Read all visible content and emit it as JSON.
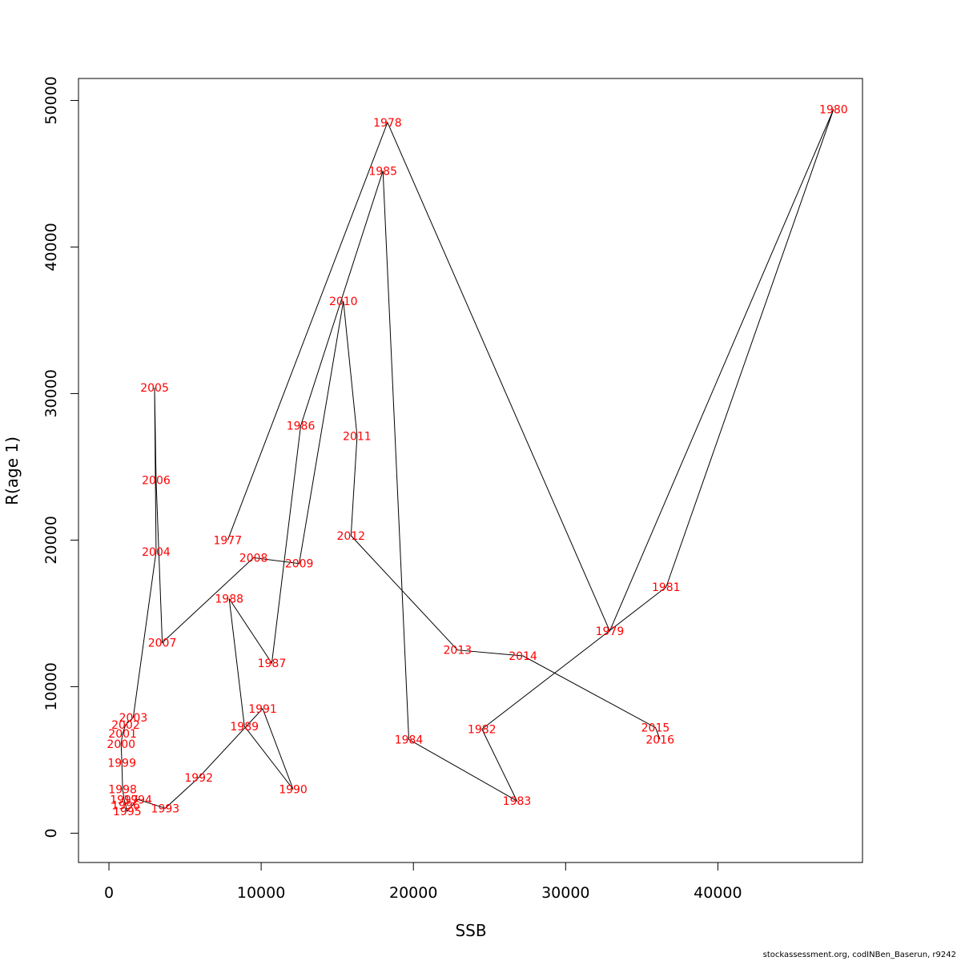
{
  "chart_data": {
    "type": "line",
    "xlabel": "SSB",
    "ylabel": "R(age 1)",
    "xlim": [
      -2000,
      49500
    ],
    "ylim": [
      -2000,
      51500
    ],
    "x_ticks": [
      0,
      10000,
      20000,
      30000,
      40000
    ],
    "x_tick_labels": [
      "0",
      "10000",
      "20000",
      "30000",
      "40000"
    ],
    "y_ticks": [
      0,
      10000,
      20000,
      30000,
      40000,
      50000
    ],
    "y_tick_labels": [
      "0",
      "10000",
      "20000",
      "30000",
      "40000",
      "50000"
    ],
    "grid": false,
    "line_color": "#000000",
    "label_color": "#ff0000",
    "points": [
      {
        "year": "1977",
        "ssb": 7800,
        "r": 20000
      },
      {
        "year": "1978",
        "ssb": 18300,
        "r": 48500
      },
      {
        "year": "1979",
        "ssb": 32900,
        "r": 13800
      },
      {
        "year": "1980",
        "ssb": 47600,
        "r": 49400
      },
      {
        "year": "1981",
        "ssb": 36600,
        "r": 16800
      },
      {
        "year": "1982",
        "ssb": 24500,
        "r": 7100
      },
      {
        "year": "1983",
        "ssb": 26800,
        "r": 2200
      },
      {
        "year": "1984",
        "ssb": 19700,
        "r": 6400
      },
      {
        "year": "1985",
        "ssb": 18000,
        "r": 45200
      },
      {
        "year": "1986",
        "ssb": 12600,
        "r": 27800
      },
      {
        "year": "1987",
        "ssb": 10700,
        "r": 11600
      },
      {
        "year": "1988",
        "ssb": 7900,
        "r": 16000
      },
      {
        "year": "1989",
        "ssb": 8900,
        "r": 7300
      },
      {
        "year": "1990",
        "ssb": 12100,
        "r": 3000
      },
      {
        "year": "1991",
        "ssb": 10100,
        "r": 8500
      },
      {
        "year": "1992",
        "ssb": 5900,
        "r": 3800
      },
      {
        "year": "1993",
        "ssb": 3700,
        "r": 1700
      },
      {
        "year": "1994",
        "ssb": 1900,
        "r": 2300
      },
      {
        "year": "1995",
        "ssb": 1200,
        "r": 1500
      },
      {
        "year": "1996",
        "ssb": 1100,
        "r": 1900
      },
      {
        "year": "1997",
        "ssb": 1000,
        "r": 2300
      },
      {
        "year": "1998",
        "ssb": 900,
        "r": 3000
      },
      {
        "year": "1999",
        "ssb": 850,
        "r": 4800
      },
      {
        "year": "2000",
        "ssb": 800,
        "r": 6100
      },
      {
        "year": "2001",
        "ssb": 900,
        "r": 6800
      },
      {
        "year": "2002",
        "ssb": 1100,
        "r": 7400
      },
      {
        "year": "2003",
        "ssb": 1600,
        "r": 7900
      },
      {
        "year": "2004",
        "ssb": 3100,
        "r": 19200
      },
      {
        "year": "2005",
        "ssb": 3000,
        "r": 30400
      },
      {
        "year": "2006",
        "ssb": 3100,
        "r": 24100
      },
      {
        "year": "2007",
        "ssb": 3500,
        "r": 13000
      },
      {
        "year": "2008",
        "ssb": 9500,
        "r": 18800
      },
      {
        "year": "2009",
        "ssb": 12500,
        "r": 18400
      },
      {
        "year": "2010",
        "ssb": 15400,
        "r": 36300
      },
      {
        "year": "2011",
        "ssb": 16300,
        "r": 27100
      },
      {
        "year": "2012",
        "ssb": 15900,
        "r": 20300
      },
      {
        "year": "2013",
        "ssb": 22900,
        "r": 12500
      },
      {
        "year": "2014",
        "ssb": 27200,
        "r": 12100
      },
      {
        "year": "2015",
        "ssb": 35900,
        "r": 7200
      },
      {
        "year": "2016",
        "ssb": 36200,
        "r": 6400
      }
    ]
  },
  "footer": {
    "caption": "stockassessment.org, codINBen_Baserun, r9242"
  }
}
